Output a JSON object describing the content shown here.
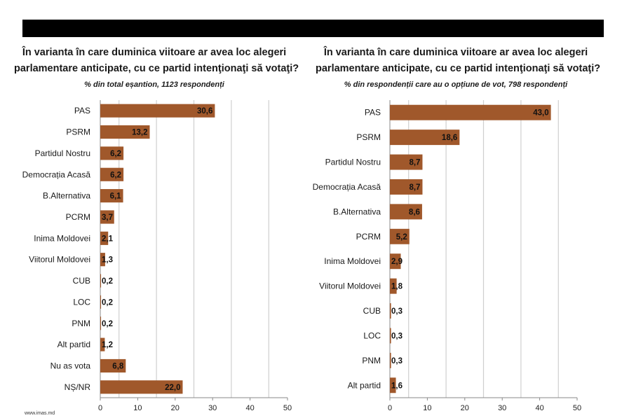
{
  "header": {
    "bar_color": "#000000"
  },
  "footer": {
    "text": "www.imas.md"
  },
  "style": {
    "bar_color": "#A0582B",
    "grid_color": "#cfcfcf",
    "axis_color": "#8a8a8a"
  },
  "chart_data": [
    {
      "type": "bar",
      "orientation": "horizontal",
      "title_line1": "În varianta în care duminica viitoare ar avea loc alegeri",
      "title_line2": "parlamentare anticipate, cu ce partid intenţionaţi să votaţi?",
      "subtitle": "% din total eșantion, 1123 respondenți",
      "categories": [
        "PAS",
        "PSRM",
        "Partidul Nostru",
        "Democrația Acasă",
        "B.Alternativa",
        "PCRM",
        "Inima Moldovei",
        "Viitorul Moldovei",
        "CUB",
        "LOC",
        "PNM",
        "Alt partid",
        "Nu as vota",
        "NȘ/NR"
      ],
      "values": [
        30.6,
        13.2,
        6.2,
        6.2,
        6.1,
        3.7,
        2.1,
        1.3,
        0.2,
        0.2,
        0.2,
        1.2,
        6.8,
        22.0
      ],
      "value_labels": [
        "30,6",
        "13,2",
        "6,2",
        "6,2",
        "6,1",
        "3,7",
        "2,1",
        "1,3",
        "0,2",
        "0,2",
        "0,2",
        "1,2",
        "6,8",
        "22,0"
      ],
      "xlim": [
        0,
        50
      ],
      "xticks": [
        "0",
        "10",
        "20",
        "30",
        "40",
        "50"
      ],
      "xtick_values": [
        0,
        10,
        20,
        30,
        40,
        50
      ],
      "gridlines": [
        5,
        15,
        25,
        35,
        45
      ],
      "xlabel": "",
      "ylabel": "",
      "legend": "none"
    },
    {
      "type": "bar",
      "orientation": "horizontal",
      "title_line1": "În varianta în care duminica viitoare ar avea loc alegeri",
      "title_line2": "parlamentare anticipate, cu ce partid intenţionaţi să votaţi?",
      "subtitle": "% din respondenții care au o opțiune de vot, 798 respondenți",
      "categories": [
        "PAS",
        "PSRM",
        "Partidul Nostru",
        "Democrația Acasă",
        "B.Alternativa",
        "PCRM",
        "Inima Moldovei",
        "Viitorul Moldovei",
        "CUB",
        "LOC",
        "PNM",
        "Alt partid"
      ],
      "values": [
        43.0,
        18.6,
        8.7,
        8.7,
        8.6,
        5.2,
        2.9,
        1.8,
        0.3,
        0.3,
        0.3,
        1.6
      ],
      "value_labels": [
        "43,0",
        "18,6",
        "8,7",
        "8,7",
        "8,6",
        "5,2",
        "2,9",
        "1,8",
        "0,3",
        "0,3",
        "0,3",
        "1,6"
      ],
      "xlim": [
        0,
        50
      ],
      "xticks": [
        "0",
        "10",
        "20",
        "30",
        "40",
        "50"
      ],
      "xtick_values": [
        0,
        10,
        20,
        30,
        40,
        50
      ],
      "gridlines": [
        5,
        15,
        25,
        35,
        45
      ],
      "xlabel": "",
      "ylabel": "",
      "legend": "none"
    }
  ]
}
